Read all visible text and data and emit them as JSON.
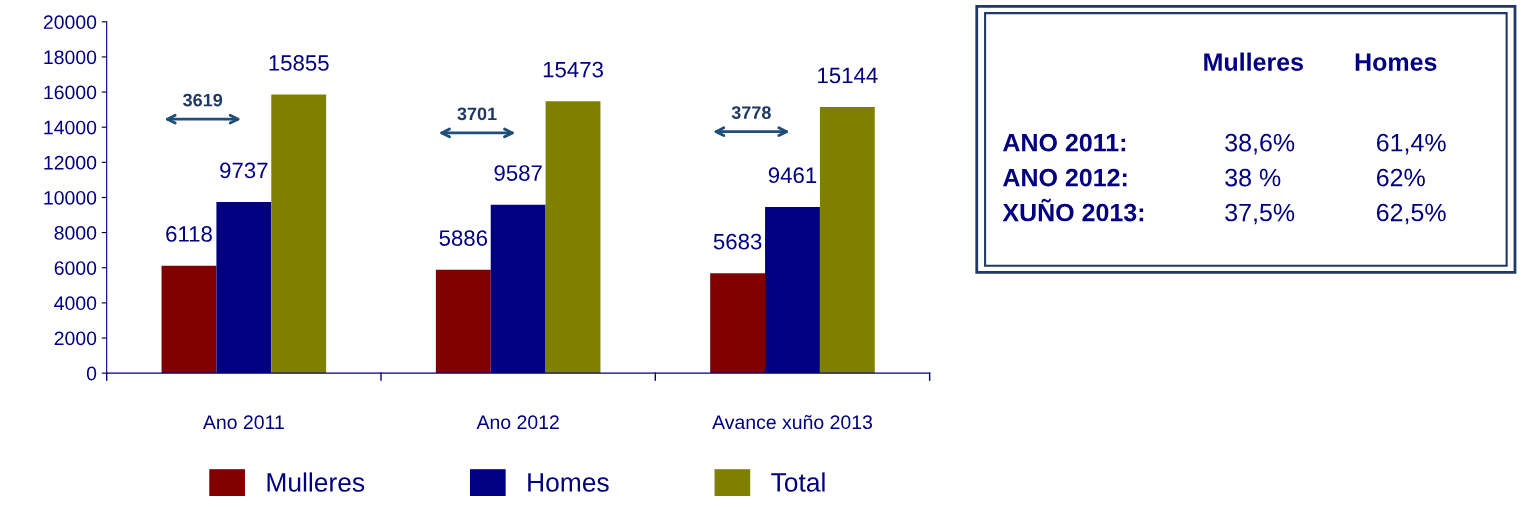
{
  "chart_data": [
    {
      "type": "bar",
      "categories": [
        "Ano 2011",
        "Ano 2012",
        "Avance xuño 2013"
      ],
      "series": [
        {
          "name": "Mulleres",
          "color": "#800000",
          "values": [
            6118,
            5886,
            5683
          ]
        },
        {
          "name": "Homes",
          "color": "#000080",
          "values": [
            9737,
            9587,
            9461
          ]
        },
        {
          "name": "Total",
          "color": "#808000",
          "values": [
            15855,
            15473,
            15144
          ]
        }
      ],
      "ylim": [
        0,
        20000
      ],
      "yticks": [
        0,
        2000,
        4000,
        6000,
        8000,
        10000,
        12000,
        14000,
        16000,
        18000,
        20000
      ],
      "data_labels": true,
      "grid": false,
      "legend": "bottom",
      "annotations": [
        "3619",
        "3701",
        "3778"
      ]
    },
    {
      "type": "other",
      "annotations": [
        "Mulleres",
        "Homes",
        "ANO 2011:",
        "38,6%",
        "61,4%",
        "ANO 2012:",
        "38 %",
        "62%",
        "XUÑO 2013:",
        "37,5%",
        "62,5%"
      ]
    }
  ]
}
